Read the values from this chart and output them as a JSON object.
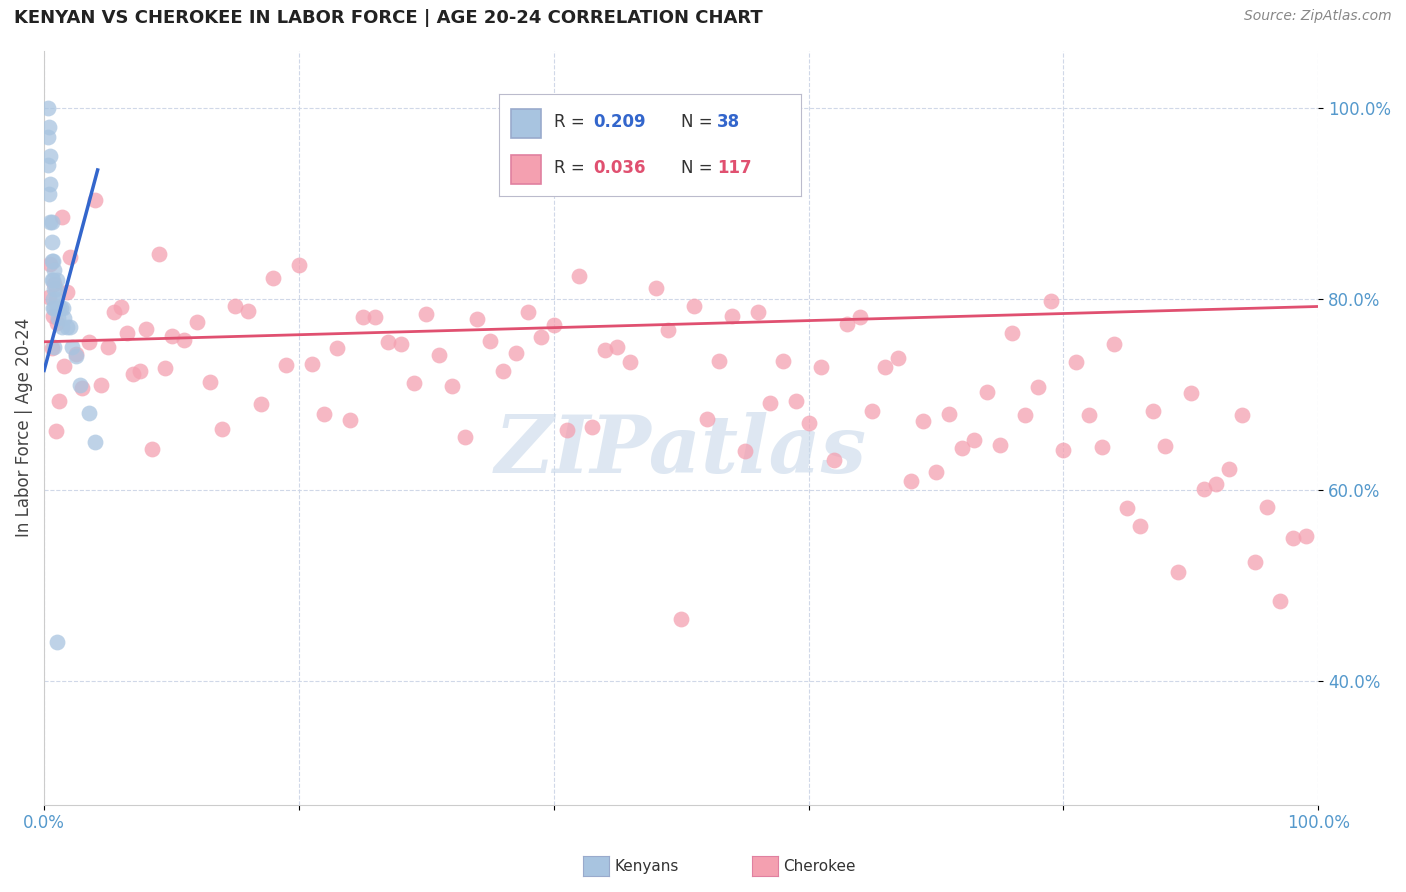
{
  "title": "KENYAN VS CHEROKEE IN LABOR FORCE | AGE 20-24 CORRELATION CHART",
  "source_text": "Source: ZipAtlas.com",
  "ylabel": "In Labor Force | Age 20-24",
  "xlim": [
    0.0,
    1.0
  ],
  "ylim": [
    0.27,
    1.06
  ],
  "y_ticks": [
    0.4,
    0.6,
    0.8,
    1.0
  ],
  "y_tick_labels": [
    "40.0%",
    "60.0%",
    "80.0%",
    "100.0%"
  ],
  "x_ticks": [
    0.0,
    0.2,
    0.4,
    0.6,
    0.8,
    1.0
  ],
  "x_tick_labels": [
    "0.0%",
    "",
    "",
    "",
    "",
    "100.0%"
  ],
  "kenyan_R": 0.209,
  "kenyan_N": 38,
  "cherokee_R": 0.036,
  "cherokee_N": 117,
  "kenyan_color": "#a8c4e0",
  "cherokee_color": "#f4a0b0",
  "kenyan_line_color": "#3366cc",
  "cherokee_line_color": "#e05070",
  "watermark": "ZIPatlas",
  "watermark_color": "#c8d8ea",
  "background_color": "#ffffff",
  "tick_color": "#5599cc",
  "grid_color": "#d0d8e8",
  "kenyan_x": [
    0.003,
    0.003,
    0.003,
    0.004,
    0.004,
    0.005,
    0.005,
    0.005,
    0.006,
    0.006,
    0.006,
    0.006,
    0.007,
    0.007,
    0.007,
    0.007,
    0.008,
    0.008,
    0.008,
    0.009,
    0.009,
    0.01,
    0.01,
    0.011,
    0.012,
    0.013,
    0.014,
    0.015,
    0.016,
    0.018,
    0.02,
    0.022,
    0.025,
    0.028,
    0.035,
    0.04,
    0.01,
    0.008
  ],
  "kenyan_y": [
    1.0,
    0.97,
    0.94,
    0.91,
    0.98,
    0.95,
    0.92,
    0.88,
    0.88,
    0.86,
    0.84,
    0.82,
    0.84,
    0.82,
    0.8,
    0.79,
    0.83,
    0.81,
    0.79,
    0.81,
    0.8,
    0.82,
    0.79,
    0.78,
    0.79,
    0.79,
    0.77,
    0.79,
    0.78,
    0.77,
    0.77,
    0.75,
    0.74,
    0.71,
    0.68,
    0.65,
    0.44,
    0.75
  ],
  "cherokee_x": [
    0.004,
    0.005,
    0.006,
    0.007,
    0.008,
    0.009,
    0.01,
    0.012,
    0.014,
    0.016,
    0.018,
    0.02,
    0.025,
    0.03,
    0.035,
    0.04,
    0.045,
    0.05,
    0.055,
    0.06,
    0.065,
    0.07,
    0.075,
    0.08,
    0.085,
    0.09,
    0.095,
    0.1,
    0.11,
    0.12,
    0.13,
    0.14,
    0.15,
    0.16,
    0.17,
    0.18,
    0.19,
    0.2,
    0.21,
    0.22,
    0.23,
    0.24,
    0.25,
    0.26,
    0.27,
    0.28,
    0.29,
    0.3,
    0.31,
    0.32,
    0.33,
    0.34,
    0.35,
    0.36,
    0.37,
    0.38,
    0.39,
    0.4,
    0.41,
    0.42,
    0.43,
    0.44,
    0.45,
    0.46,
    0.47,
    0.48,
    0.49,
    0.5,
    0.51,
    0.52,
    0.53,
    0.54,
    0.55,
    0.56,
    0.57,
    0.58,
    0.59,
    0.6,
    0.61,
    0.62,
    0.63,
    0.64,
    0.65,
    0.66,
    0.67,
    0.68,
    0.69,
    0.7,
    0.71,
    0.72,
    0.73,
    0.74,
    0.75,
    0.76,
    0.77,
    0.78,
    0.79,
    0.8,
    0.81,
    0.82,
    0.83,
    0.84,
    0.85,
    0.86,
    0.87,
    0.88,
    0.89,
    0.9,
    0.91,
    0.92,
    0.93,
    0.94,
    0.95,
    0.96,
    0.97,
    0.98,
    0.99
  ],
  "cherokee_y": [
    0.79,
    0.8,
    0.78,
    0.76,
    0.79,
    0.77,
    0.76,
    0.78,
    0.8,
    0.77,
    0.79,
    0.78,
    0.8,
    0.76,
    0.79,
    0.81,
    0.78,
    0.76,
    0.79,
    0.8,
    0.77,
    0.76,
    0.78,
    0.79,
    0.76,
    0.75,
    0.77,
    0.79,
    0.8,
    0.76,
    0.78,
    0.75,
    0.77,
    0.79,
    0.74,
    0.76,
    0.72,
    0.82,
    0.78,
    0.74,
    0.76,
    0.73,
    0.79,
    0.75,
    0.71,
    0.76,
    0.72,
    0.78,
    0.74,
    0.77,
    0.75,
    0.73,
    0.78,
    0.76,
    0.72,
    0.74,
    0.7,
    0.78,
    0.74,
    0.76,
    0.72,
    0.74,
    0.78,
    0.7,
    0.76,
    0.72,
    0.74,
    0.48,
    0.76,
    0.68,
    0.74,
    0.7,
    0.66,
    0.72,
    0.68,
    0.74,
    0.7,
    0.66,
    0.72,
    0.68,
    0.74,
    0.7,
    0.63,
    0.72,
    0.68,
    0.65,
    0.71,
    0.67,
    0.73,
    0.69,
    0.65,
    0.71,
    0.67,
    0.73,
    0.69,
    0.65,
    0.71,
    0.67,
    0.63,
    0.69,
    0.65,
    0.71,
    0.67,
    0.63,
    0.69,
    0.65,
    0.61,
    0.67,
    0.63,
    0.59,
    0.65,
    0.61,
    0.57,
    0.63,
    0.59,
    0.55,
    0.51
  ]
}
